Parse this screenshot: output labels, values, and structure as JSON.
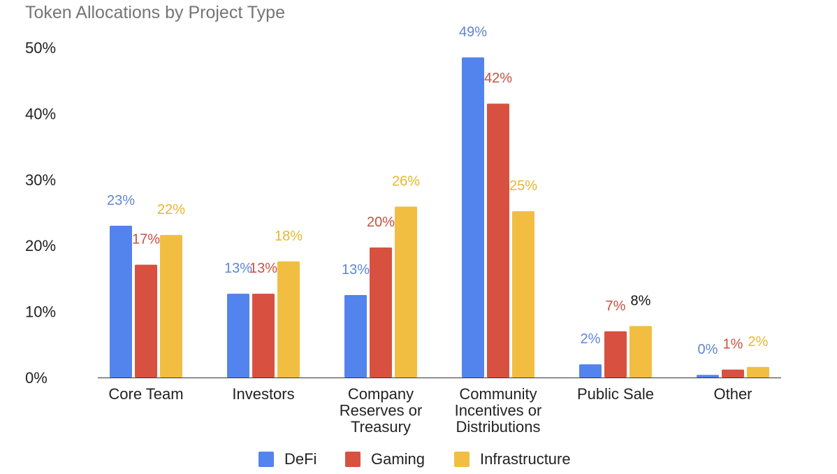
{
  "chart_data": {
    "type": "bar",
    "title": "Token Allocations by Project Type",
    "categories": [
      [
        "Core Team"
      ],
      [
        "Investors"
      ],
      [
        "Company",
        "Reserves or",
        "Treasury"
      ],
      [
        "Community",
        "Incentives or",
        "Distributions"
      ],
      [
        "Public Sale"
      ],
      [
        "Other"
      ]
    ],
    "series": [
      {
        "name": "DeFi",
        "color": "#5383ec",
        "values": [
          23,
          12.7,
          12.5,
          48.5,
          2,
          0.4
        ],
        "labels": [
          "23%",
          "13%",
          "13%",
          "49%",
          "2%",
          "0%"
        ]
      },
      {
        "name": "Gaming",
        "color": "#d85140",
        "values": [
          17.1,
          12.7,
          19.7,
          41.5,
          7,
          1.2
        ],
        "labels": [
          "17%",
          "13%",
          "20%",
          "42%",
          "7%",
          "1%"
        ]
      },
      {
        "name": "Infrastructure",
        "color": "#f1be42",
        "values": [
          21.6,
          17.6,
          25.9,
          25.2,
          7.8,
          1.6
        ],
        "labels": [
          "22%",
          "18%",
          "26%",
          "25%",
          "8%",
          "2%"
        ]
      }
    ],
    "yticks": [
      "0%",
      "10%",
      "20%",
      "30%",
      "40%",
      "50%"
    ],
    "ylim": [
      0,
      50
    ],
    "legend": "bottom",
    "grid": false
  }
}
